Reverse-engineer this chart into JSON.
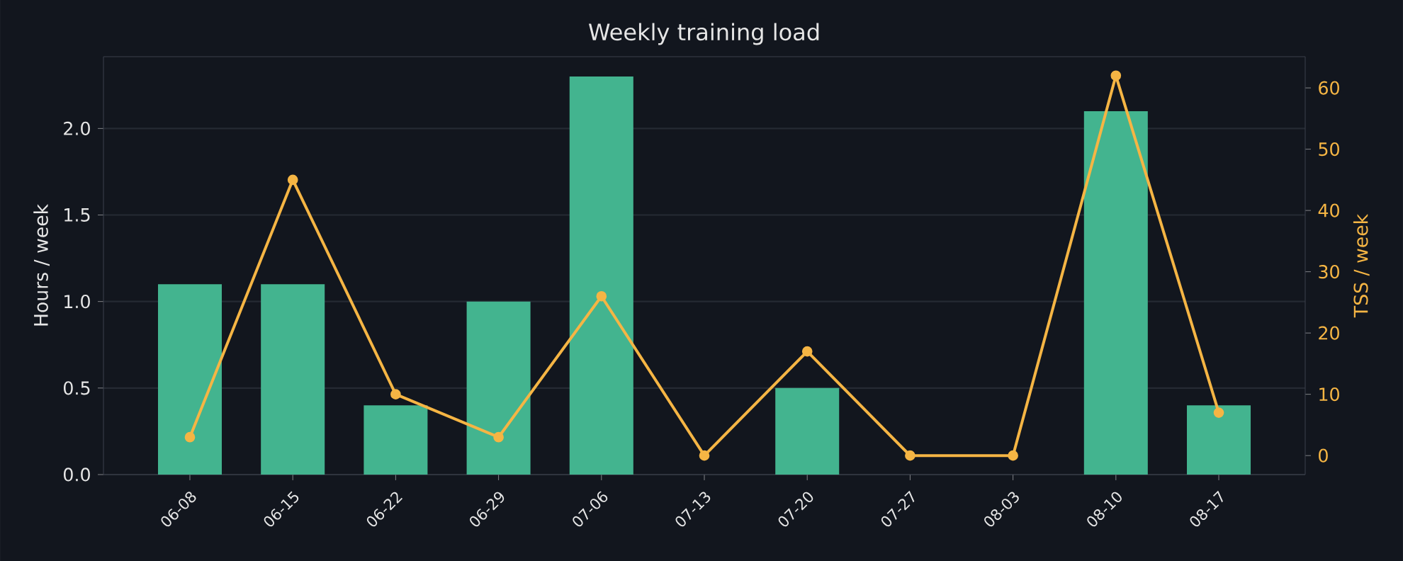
{
  "chart_data": {
    "type": "bar",
    "title": "Weekly training load",
    "ylabel": "Hours / week",
    "y2label": "TSS / week",
    "categories": [
      "06-08",
      "06-15",
      "06-22",
      "06-29",
      "07-06",
      "07-13",
      "07-20",
      "07-27",
      "08-03",
      "08-10",
      "08-17"
    ],
    "series": [
      {
        "color": "#43b48f",
        "values": [
          1.1,
          1.1,
          0.4,
          1.0,
          2.3,
          0,
          0.5,
          0,
          0,
          2.1,
          0.4
        ]
      },
      {
        "type": "line",
        "axis": "y2",
        "color": "#f5b544",
        "values": [
          3,
          45,
          10,
          3,
          26,
          0,
          17,
          0,
          0,
          62,
          7
        ]
      }
    ],
    "ylim": [
      0,
      2.415
    ],
    "yticks": [
      {
        "value": 0,
        "label": "0.0"
      },
      {
        "value": 0.5,
        "label": "0.5"
      },
      {
        "value": 1,
        "label": "1.0"
      },
      {
        "value": 1.5,
        "label": "1.5"
      },
      {
        "value": 2,
        "label": "2.0"
      }
    ],
    "y2lim": [
      -3.1,
      65.1
    ],
    "y2ticks": [
      0,
      10,
      20,
      30,
      40,
      50,
      60
    ],
    "grid": "y",
    "marker": "circle",
    "line_style": "solid"
  }
}
